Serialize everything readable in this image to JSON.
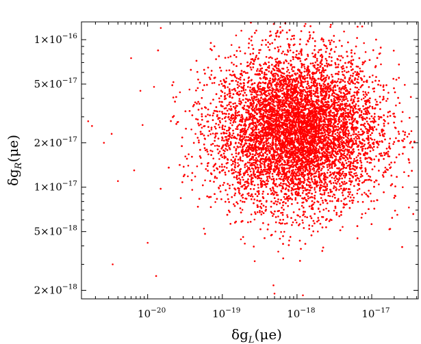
{
  "chart_data": {
    "type": "scatter",
    "title": "",
    "xlabel": {
      "base": "δg",
      "subscript": "L",
      "suffix": "(μe)"
    },
    "ylabel": {
      "base": "δg",
      "subscript": "R",
      "suffix": "(μe)"
    },
    "x_scale": "log",
    "y_scale": "log",
    "xlim": [
      1.3e-21,
      4.2e-17
    ],
    "ylim": [
      1.75e-18,
      1.32e-16
    ],
    "grid": false,
    "legend": false,
    "point_color": "#ff0000",
    "x_ticks": [
      {
        "value": 1e-20,
        "mantissa": "",
        "base": "10",
        "exponent": "−20"
      },
      {
        "value": 1e-19,
        "mantissa": "",
        "base": "10",
        "exponent": "−19"
      },
      {
        "value": 1e-18,
        "mantissa": "",
        "base": "10",
        "exponent": "−18"
      },
      {
        "value": 1e-17,
        "mantissa": "",
        "base": "10",
        "exponent": "−17"
      }
    ],
    "y_ticks": [
      {
        "value": 1e-16,
        "mantissa": "1×",
        "base": "10",
        "exponent": "−16"
      },
      {
        "value": 5e-17,
        "mantissa": "5×",
        "base": "10",
        "exponent": "−17"
      },
      {
        "value": 2e-17,
        "mantissa": "2×",
        "base": "10",
        "exponent": "−17"
      },
      {
        "value": 1e-17,
        "mantissa": "1×",
        "base": "10",
        "exponent": "−17"
      },
      {
        "value": 5e-18,
        "mantissa": "5×",
        "base": "10",
        "exponent": "−18"
      },
      {
        "value": 2e-18,
        "mantissa": "2×",
        "base": "10",
        "exponent": "−18"
      }
    ],
    "series": [
      {
        "distribution": "log-normal cloud",
        "approx_count": 12000,
        "x_center": 1e-18,
        "y_center": 2.4e-17,
        "x_spread_decades": 0.55,
        "y_spread_decades": 0.26,
        "points": [
          [
            1.6e-21,
            2.8e-17
          ],
          [
            1.8e-21,
            2.6e-17
          ],
          [
            2.6e-21,
            2e-17
          ],
          [
            3.3e-21,
            2.3e-17
          ],
          [
            3.4e-21,
            3e-18
          ],
          [
            4e-21,
            1.1e-17
          ],
          [
            6e-21,
            7.5e-17
          ],
          [
            6.6e-21,
            1.3e-17
          ],
          [
            8e-21,
            4.5e-17
          ],
          [
            1e-20,
            4.2e-18
          ],
          [
            1.3e-20,
            2.5e-18
          ],
          [
            1.5e-20,
            1.2e-16
          ],
          [
            3e-17,
            2.2e-17
          ],
          [
            3.4e-17,
            2.4e-17
          ],
          [
            2.2e-17,
            6.5e-18
          ],
          [
            1.3e-18,
            1.28e-16
          ],
          [
            2.6e-17,
            1e-17
          ],
          [
            5e-19,
            1.9e-18
          ],
          [
            1.2e-18,
            1.85e-18
          ],
          [
            1.8e-19,
            1.15e-16
          ]
        ]
      }
    ]
  }
}
